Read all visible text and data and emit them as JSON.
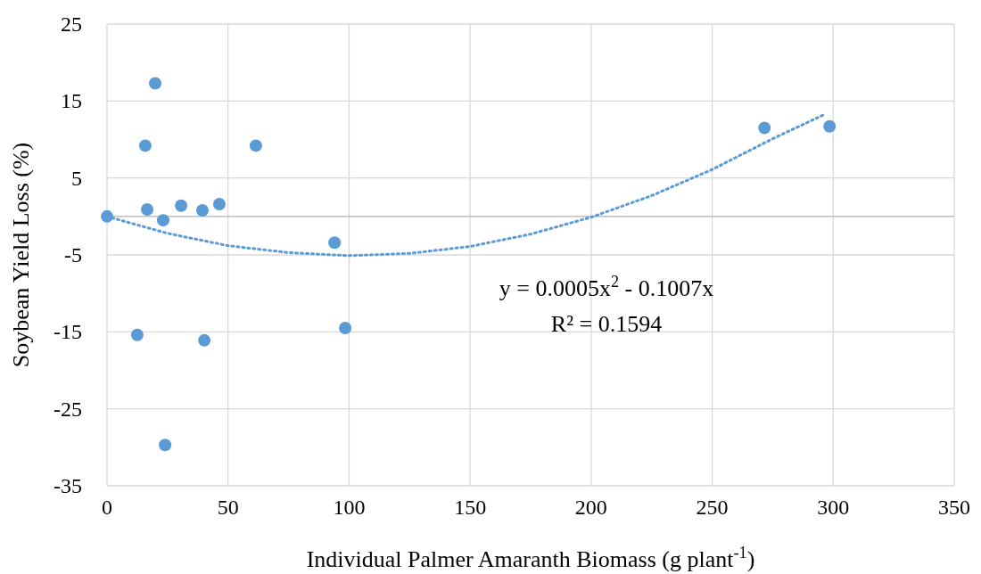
{
  "chart_data": {
    "type": "scatter",
    "xlabel": "Individual Palmer Amaranth Biomass (g plant$^{-1}$)",
    "ylabel": "Soybean Yield Loss (%)",
    "xlim": [
      0,
      350
    ],
    "xticks": [
      0,
      50,
      100,
      150,
      200,
      250,
      300,
      350
    ],
    "ylim": [
      -35,
      25
    ],
    "yticks": [
      -35,
      -25,
      -15,
      -5,
      5,
      15,
      25
    ],
    "grid": true,
    "marker": "circle",
    "ref_lines": [
      {
        "axis": "y",
        "value": 0,
        "color": "#bfbfbf"
      }
    ],
    "series": [
      {
        "color": "#5b9bd5",
        "x": [
          0,
          19.9,
          15.8,
          61.5,
          16.6,
          30.6,
          23.2,
          39.4,
          46.4,
          94,
          12.5,
          40.2,
          98.4,
          24,
          271.6,
          298.5
        ],
        "values": [
          0,
          17.3,
          9.2,
          9.2,
          0.9,
          1.4,
          -0.5,
          0.8,
          1.6,
          -3.4,
          -15.4,
          -16.1,
          -14.5,
          -29.7,
          11.5,
          11.7
        ]
      },
      {
        "type": "line",
        "line_style": "dotted",
        "marker": "none",
        "color": "#5b9bd5",
        "x": [
          0,
          25,
          50,
          75,
          100,
          125,
          150,
          175,
          200,
          225,
          250,
          275,
          296
        ],
        "values": [
          0,
          -2.2,
          -3.8,
          -4.7,
          -5.1,
          -4.8,
          -3.9,
          -2.3,
          -0.1,
          2.7,
          6.1,
          10.1,
          13.2
        ]
      }
    ],
    "annotations": [
      "y = 0.0005x$^{2}$ - 0.1007x",
      "R² = 0.1594"
    ]
  }
}
